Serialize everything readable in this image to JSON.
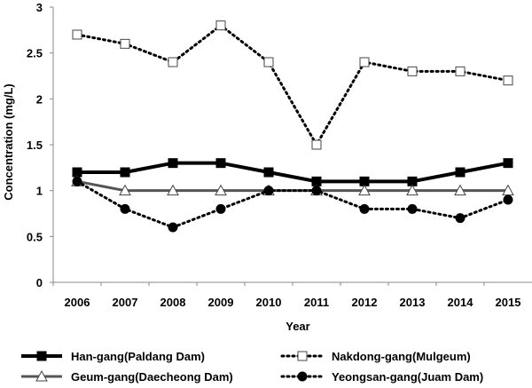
{
  "chart_data": {
    "type": "line",
    "title": "",
    "xlabel": "Year",
    "ylabel": "Concentration (mg/L)",
    "ylim": [
      0,
      3
    ],
    "yticks": [
      "0",
      "0.5",
      "1",
      "1.5",
      "2",
      "2.5",
      "3"
    ],
    "grid": false,
    "legend_position": "bottom",
    "x": [
      "2006",
      "2007",
      "2008",
      "2009",
      "2010",
      "2011",
      "2012",
      "2013",
      "2014",
      "2015"
    ],
    "series": [
      {
        "name": "Han-gang(Paldang Dam)",
        "values": [
          1.2,
          1.2,
          1.3,
          1.3,
          1.2,
          1.1,
          1.1,
          1.1,
          1.2,
          1.3
        ],
        "line": "solid",
        "marker": "square-filled",
        "color": "#000000"
      },
      {
        "name": "Nakdong-gang(Mulgeum)",
        "values": [
          2.7,
          2.6,
          2.4,
          2.8,
          2.4,
          1.5,
          2.4,
          2.3,
          2.3,
          2.2
        ],
        "line": "dotted",
        "marker": "square-open",
        "color": "#000000"
      },
      {
        "name": "Geum-gang(Daecheong Dam)",
        "values": [
          1.1,
          1.0,
          1.0,
          1.0,
          1.0,
          1.0,
          1.0,
          1.0,
          1.0,
          1.0
        ],
        "line": "solid",
        "marker": "triangle-open",
        "color": "#555555"
      },
      {
        "name": "Yeongsan-gang(Juam Dam)",
        "values": [
          1.1,
          0.8,
          0.6,
          0.8,
          1.0,
          1.0,
          0.8,
          0.8,
          0.7,
          0.9
        ],
        "line": "dotted",
        "marker": "circle-filled",
        "color": "#000000"
      }
    ]
  }
}
